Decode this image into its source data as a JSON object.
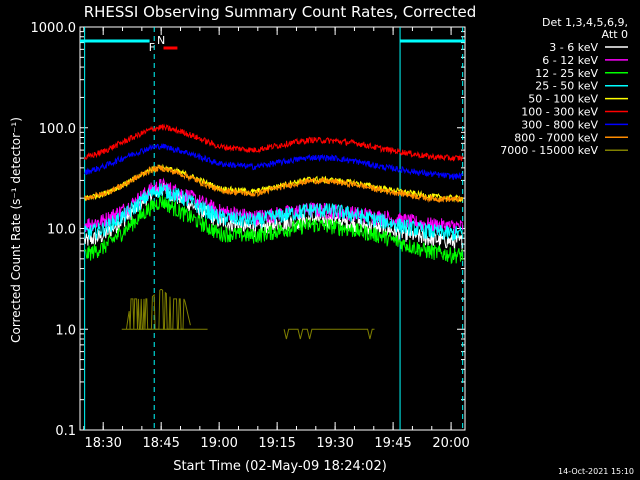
{
  "chart_data": {
    "type": "line",
    "title": "RHESSI Observing Summary Count Rates, Corrected",
    "xlabel": "Start Time (02-May-09 18:24:02)",
    "ylabel": "Corrected Count Rate (s⁻¹ detector⁻¹)",
    "y_scale": "log",
    "ylim": [
      0.1,
      1000
    ],
    "y_ticks": [
      "0.1",
      "1.0",
      "10.0",
      "100.0",
      "1000.0"
    ],
    "xlim_min": [
      18.4,
      20.06
    ],
    "x_ticks": [
      {
        "t": 18.5,
        "label": "18:30"
      },
      {
        "t": 18.75,
        "label": "18:45"
      },
      {
        "t": 19.0,
        "label": "19:00"
      },
      {
        "t": 19.25,
        "label": "19:15"
      },
      {
        "t": 19.5,
        "label": "19:30"
      },
      {
        "t": 19.75,
        "label": "19:45"
      },
      {
        "t": 20.0,
        "label": "20:00"
      }
    ],
    "legend_header": [
      "Det 1,3,4,5,6,9,",
      "Att 0"
    ],
    "legend_position": "right",
    "series": [
      {
        "name": "3 - 6 keV",
        "color": "#ffffff",
        "x": [
          18.42,
          18.5,
          18.6,
          18.7,
          18.75,
          18.85,
          19.0,
          19.15,
          19.3,
          19.4,
          19.5,
          19.6,
          19.7,
          19.8,
          19.9,
          20.0,
          20.05
        ],
        "y": [
          7.5,
          8.5,
          13,
          22,
          25,
          19,
          12,
          10,
          11.5,
          12.5,
          12,
          11,
          10,
          9,
          8,
          7.5,
          7.5
        ]
      },
      {
        "name": "6 - 12 keV",
        "color": "#ff00ff",
        "x": [
          18.42,
          18.5,
          18.6,
          18.7,
          18.75,
          18.85,
          19.0,
          19.15,
          19.3,
          19.4,
          19.5,
          19.6,
          19.7,
          19.8,
          19.9,
          20.0,
          20.05
        ],
        "y": [
          11,
          12,
          16,
          24,
          27,
          22,
          15,
          13,
          14.5,
          15.5,
          15,
          14,
          13,
          12,
          11,
          10.5,
          10.5
        ]
      },
      {
        "name": "12 - 25 keV",
        "color": "#00ff00",
        "x": [
          18.42,
          18.5,
          18.6,
          18.7,
          18.75,
          18.85,
          19.0,
          19.15,
          19.3,
          19.4,
          19.5,
          19.6,
          19.7,
          19.8,
          19.9,
          20.0,
          20.05
        ],
        "y": [
          5.5,
          6.5,
          10,
          16,
          19,
          14,
          9,
          8.5,
          10,
          11,
          10.5,
          9.5,
          8.5,
          7,
          6,
          5.5,
          5.5
        ]
      },
      {
        "name": "25 - 50 keV",
        "color": "#00ffff",
        "x": [
          18.42,
          18.5,
          18.6,
          18.7,
          18.75,
          18.85,
          19.0,
          19.15,
          19.3,
          19.4,
          19.5,
          19.6,
          19.7,
          19.8,
          19.9,
          20.0,
          20.05
        ],
        "y": [
          9,
          10,
          14,
          22,
          25,
          20,
          13,
          12,
          14,
          15.5,
          15,
          13.5,
          12,
          10.5,
          9.5,
          9,
          9
        ]
      },
      {
        "name": "50 - 100 keV",
        "color": "#ffff00",
        "x": [
          18.42,
          18.5,
          18.6,
          18.7,
          18.75,
          18.85,
          19.0,
          19.15,
          19.3,
          19.4,
          19.5,
          19.6,
          19.7,
          19.8,
          19.9,
          20.0,
          20.05
        ],
        "y": [
          20,
          22,
          28,
          38,
          41,
          35,
          25,
          23,
          28,
          31,
          30,
          28,
          25,
          23,
          21,
          20,
          20
        ]
      },
      {
        "name": "100 - 300 keV",
        "color": "#ff0000",
        "x": [
          18.42,
          18.5,
          18.6,
          18.7,
          18.75,
          18.85,
          19.0,
          19.15,
          19.3,
          19.4,
          19.5,
          19.6,
          19.7,
          19.8,
          19.9,
          20.0,
          20.05
        ],
        "y": [
          50,
          58,
          75,
          95,
          102,
          90,
          65,
          60,
          70,
          76,
          74,
          70,
          62,
          57,
          52,
          50,
          50
        ]
      },
      {
        "name": "300 - 800 keV",
        "color": "#0000ff",
        "x": [
          18.42,
          18.5,
          18.6,
          18.7,
          18.75,
          18.85,
          19.0,
          19.15,
          19.3,
          19.4,
          19.5,
          19.6,
          19.7,
          19.8,
          19.9,
          20.0,
          20.05
        ],
        "y": [
          36,
          41,
          52,
          63,
          66,
          58,
          44,
          41,
          47,
          51,
          50,
          46,
          41,
          38,
          35,
          33,
          33
        ]
      },
      {
        "name": "800 - 7000 keV",
        "color": "#ff8c00",
        "x": [
          18.42,
          18.5,
          18.6,
          18.7,
          18.75,
          18.85,
          19.0,
          19.15,
          19.3,
          19.4,
          19.5,
          19.6,
          19.7,
          19.8,
          19.9,
          20.0,
          20.05
        ],
        "y": [
          20,
          22,
          28,
          38,
          40,
          34,
          24,
          22,
          27,
          30,
          29,
          27,
          24,
          22,
          20,
          19.5,
          19.5
        ]
      },
      {
        "name": "7000 - 15000 keV",
        "color": "#808000",
        "x": [
          18.6,
          18.62,
          18.65,
          18.7,
          18.75,
          18.8,
          18.85,
          18.88
        ],
        "y": [
          1.0,
          2.0,
          2.0,
          2.0,
          2.5,
          2.0,
          2.0,
          1.0
        ]
      }
    ],
    "flag_bars": [
      {
        "color": "#00ffff",
        "from": 18.4,
        "to": 18.7,
        "y_level": "top"
      },
      {
        "color": "#00ffff",
        "from": 19.78,
        "to": 20.06,
        "y_level": "top"
      },
      {
        "color": "#ff0000",
        "from": 18.76,
        "to": 18.82,
        "y_level": "second",
        "label": "F"
      }
    ],
    "flag_labels": [
      {
        "text": "N",
        "color": "#00ffff",
        "at": 18.75
      },
      {
        "text": "F",
        "color": "#ff0000",
        "at": 18.71
      }
    ],
    "vlines": [
      {
        "t": 18.42,
        "color": "#00ffff",
        "style": "solid"
      },
      {
        "t": 18.72,
        "color": "#00ffff",
        "style": "dashed"
      },
      {
        "t": 19.78,
        "color": "#00ffff",
        "style": "solid"
      },
      {
        "t": 20.05,
        "color": "#00ffff",
        "style": "dashed"
      }
    ],
    "footer_stamp": "14-Oct-2021 15:10"
  }
}
